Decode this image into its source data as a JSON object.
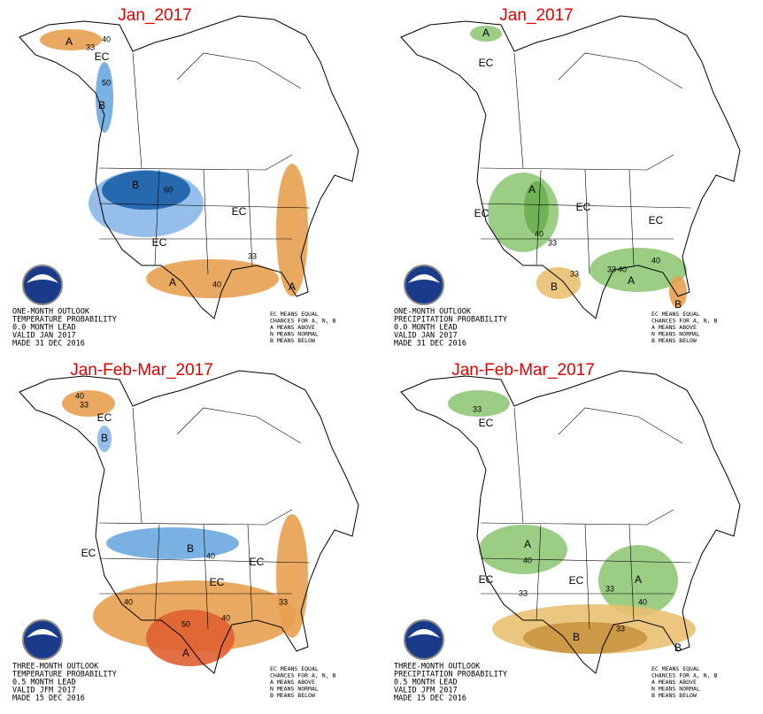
{
  "panels": [
    {
      "title": "Jan_2017",
      "outlook": [
        "ONE-MONTH OUTLOOK",
        "TEMPERATURE PROBABILITY",
        "0.0 MONTH LEAD",
        "VALID JAN 2017",
        "MADE 31 DEC 2016"
      ],
      "legend": [
        "EC MEANS EQUAL",
        "CHANCES FOR A, N, B",
        "A MEANS ABOVE",
        "N MEANS NORMAL",
        "B MEANS BELOW"
      ],
      "labels": [
        "A",
        "40",
        "33",
        "EC",
        "50",
        "B",
        "B",
        "60",
        "EC",
        "EC",
        "A",
        "40",
        "33",
        "A"
      ]
    },
    {
      "title": "Jan_2017",
      "outlook": [
        "ONE-MONTH OUTLOOK",
        "PRECIPITATION PROBABILITY",
        "0.0 MONTH LEAD",
        "VALID JAN 2017",
        "MADE 31 DEC 2016"
      ],
      "legend": [
        "EC MEANS EQUAL",
        "CHANCES FOR A, N, B",
        "A MEANS ABOVE",
        "N MEANS NORMAL",
        "B MEANS BELOW"
      ],
      "labels": [
        "A",
        "EC",
        "A",
        "EC",
        "EC",
        "40",
        "33",
        "EC",
        "B",
        "33",
        "33",
        "40",
        "A",
        "40",
        "B"
      ]
    },
    {
      "title": "Jan-Feb-Mar_2017",
      "outlook": [
        "THREE-MONTH OUTLOOK",
        "TEMPERATURE PROBABILITY",
        "0.5 MONTH LEAD",
        "VALID JFM 2017",
        "MADE 15 DEC 2016"
      ],
      "legend": [
        "EC MEANS EQUAL",
        "CHANCES FOR A, N, B",
        "A MEANS ABOVE",
        "N MEANS NORMAL",
        "B MEANS BELOW"
      ],
      "labels": [
        "40",
        "33",
        "EC",
        "B",
        "EC",
        "B",
        "40",
        "EC",
        "EC",
        "40",
        "50",
        "A",
        "40",
        "33"
      ]
    },
    {
      "title": "Jan-Feb-Mar_2017",
      "outlook": [
        "THREE-MONTH OUTLOOK",
        "PRECIPITATION PROBABILITY",
        "0.5 MONTH LEAD",
        "VALID JFM 2017",
        "MADE 15 DEC 2016"
      ],
      "legend": [
        "EC MEANS EQUAL",
        "CHANCES FOR A, N, B",
        "A MEANS ABOVE",
        "N MEANS NORMAL",
        "B MEANS BELOW"
      ],
      "labels": [
        "33",
        "EC",
        "A",
        "40",
        "EC",
        "EC",
        "A",
        "33",
        "40",
        "33",
        "B",
        "33",
        "B"
      ]
    }
  ]
}
